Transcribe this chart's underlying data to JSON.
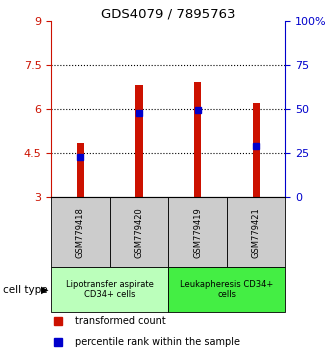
{
  "title": "GDS4079 / 7895763",
  "samples": [
    "GSM779418",
    "GSM779420",
    "GSM779419",
    "GSM779421"
  ],
  "bar_values": [
    4.85,
    6.82,
    6.92,
    6.2
  ],
  "bar_bottom": 3.0,
  "percentile_values": [
    4.38,
    5.86,
    5.98,
    4.73
  ],
  "ylim": [
    3.0,
    9.0
  ],
  "yticks_left": [
    3,
    4.5,
    6,
    7.5,
    9
  ],
  "yticks_right": [
    0,
    25,
    50,
    75,
    100
  ],
  "ytick_labels_left": [
    "3",
    "4.5",
    "6",
    "7.5",
    "9"
  ],
  "ytick_labels_right": [
    "0",
    "25",
    "50",
    "75",
    "100%"
  ],
  "bar_color": "#cc1100",
  "percentile_color": "#0000cc",
  "grid_color": "#000000",
  "bar_width": 0.12,
  "cell_type_groups": [
    {
      "label": "Lipotransfer aspirate\nCD34+ cells",
      "color": "#bbffbb",
      "indices": [
        0,
        1
      ]
    },
    {
      "label": "Leukapheresis CD34+\ncells",
      "color": "#44ee44",
      "indices": [
        2,
        3
      ]
    }
  ],
  "legend_items": [
    {
      "color": "#cc1100",
      "marker": "s",
      "label": "transformed count"
    },
    {
      "color": "#0000cc",
      "marker": "s",
      "label": "percentile rank within the sample"
    }
  ],
  "cell_type_label": "cell type",
  "left_color": "#cc1100",
  "right_color": "#0000cc",
  "bg_color": "#ffffff",
  "sample_box_color": "#cccccc",
  "group_border_color": "#000000"
}
